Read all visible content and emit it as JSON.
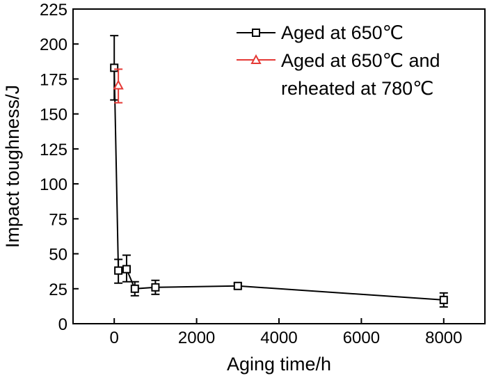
{
  "chart_data": {
    "type": "line",
    "title": "",
    "xlabel": "Aging time/h",
    "ylabel": "Impact toughness/J",
    "xlim": [
      -1000,
      9000
    ],
    "ylim": [
      0,
      225
    ],
    "x_ticks": [
      0,
      2000,
      4000,
      6000,
      8000
    ],
    "y_ticks": [
      0,
      25,
      50,
      75,
      100,
      125,
      150,
      175,
      200,
      225
    ],
    "legend_position": "top-right",
    "series": [
      {
        "name": "Aged at 650℃",
        "color": "#000000",
        "marker": "square",
        "points": [
          {
            "x": 0,
            "y": 183,
            "err_low": 160,
            "err_high": 206
          },
          {
            "x": 100,
            "y": 38,
            "err_low": 29,
            "err_high": 46
          },
          {
            "x": 300,
            "y": 39,
            "err_low": 30,
            "err_high": 49
          },
          {
            "x": 500,
            "y": 25,
            "err_low": 20,
            "err_high": 30
          },
          {
            "x": 1000,
            "y": 26,
            "err_low": 21,
            "err_high": 31
          },
          {
            "x": 3000,
            "y": 27,
            "err_low": 25,
            "err_high": 29
          },
          {
            "x": 8000,
            "y": 17,
            "err_low": 12,
            "err_high": 22
          }
        ]
      },
      {
        "name": "Aged at 650℃ and reheated at 780℃",
        "legend_lines": [
          "Aged at 650℃ and",
          "reheated at 780℃"
        ],
        "color": "#e53935",
        "marker": "triangle",
        "points": [
          {
            "x": 100,
            "y": 170,
            "err_low": 158,
            "err_high": 182
          }
        ]
      }
    ]
  }
}
